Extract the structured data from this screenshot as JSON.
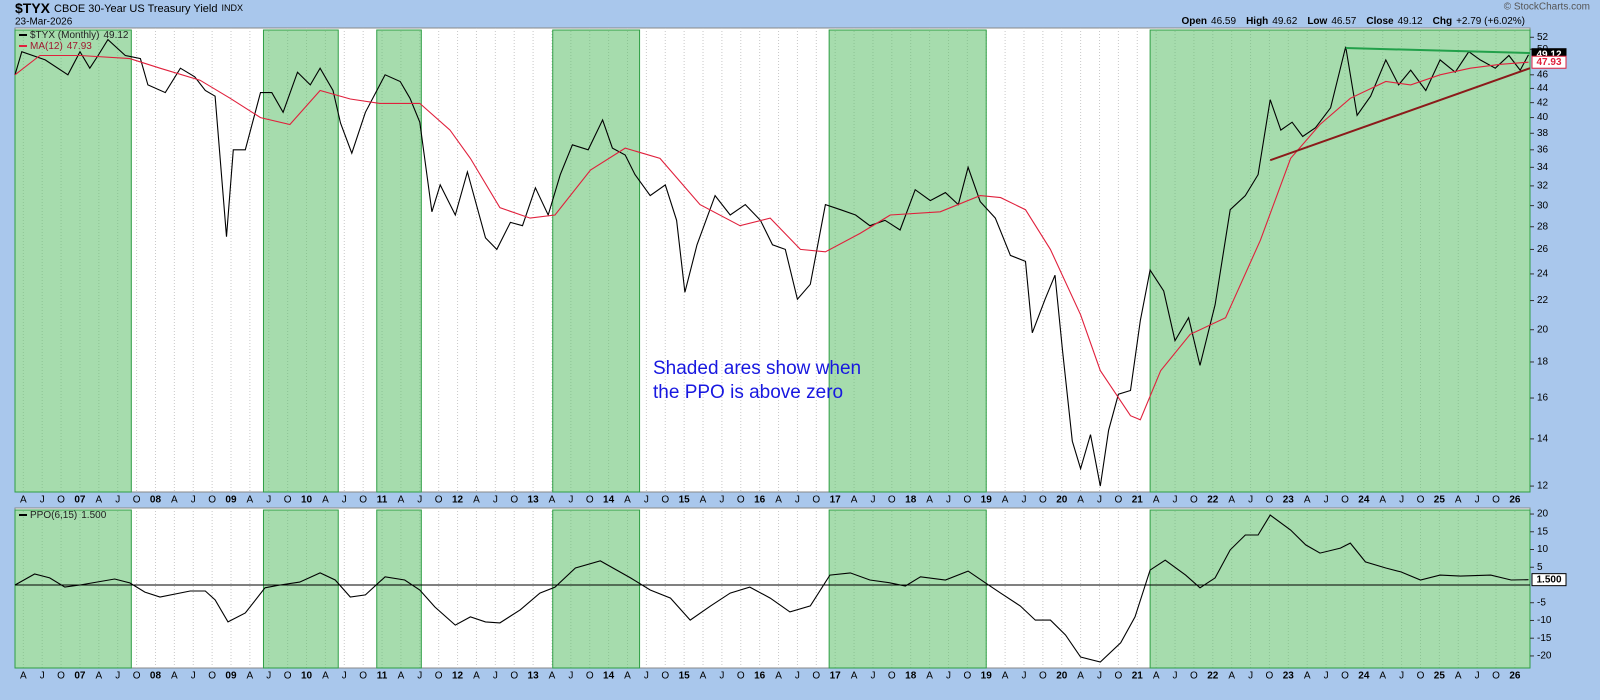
{
  "chart_data": [
    {
      "type": "line",
      "title": "$TYX",
      "subtitle": "CBOE 30-Year US Treasury Yield",
      "exchange": "INDX",
      "date": "23-Mar-2026",
      "quote": [
        {
          "label": "Open",
          "value": 46.59
        },
        {
          "label": "High",
          "value": 49.62
        },
        {
          "label": "Low",
          "value": 46.57
        },
        {
          "label": "Close",
          "value": 49.12
        },
        {
          "label": "Chg",
          "value": "+2.79 (+6.02%)"
        }
      ],
      "credit": "© StockCharts.com",
      "annotation": "Shaded ares show when the PPO is above zero",
      "log_scale": true,
      "grid": "x",
      "xlim": [
        2006.14,
        2026.2
      ],
      "xticks": [
        {
          "value": 2006.25,
          "label": "A"
        },
        {
          "value": 2006.5,
          "label": "J"
        },
        {
          "value": 2006.75,
          "label": "O"
        },
        {
          "value": 2007,
          "label": "07"
        },
        {
          "value": 2007.25,
          "label": "A"
        },
        {
          "value": 2007.5,
          "label": "J"
        },
        {
          "value": 2007.75,
          "label": "O"
        },
        {
          "value": 2008,
          "label": "08"
        },
        {
          "value": 2008.25,
          "label": "A"
        },
        {
          "value": 2008.5,
          "label": "J"
        },
        {
          "value": 2008.75,
          "label": "O"
        },
        {
          "value": 2009,
          "label": "09"
        },
        {
          "value": 2009.25,
          "label": "A"
        },
        {
          "value": 2009.5,
          "label": "J"
        },
        {
          "value": 2009.75,
          "label": "O"
        },
        {
          "value": 2010,
          "label": "10"
        },
        {
          "value": 2010.25,
          "label": "A"
        },
        {
          "value": 2010.5,
          "label": "J"
        },
        {
          "value": 2010.75,
          "label": "O"
        },
        {
          "value": 2011,
          "label": "11"
        },
        {
          "value": 2011.25,
          "label": "A"
        },
        {
          "value": 2011.5,
          "label": "J"
        },
        {
          "value": 2011.75,
          "label": "O"
        },
        {
          "value": 2012,
          "label": "12"
        },
        {
          "value": 2012.25,
          "label": "A"
        },
        {
          "value": 2012.5,
          "label": "J"
        },
        {
          "value": 2012.75,
          "label": "O"
        },
        {
          "value": 2013,
          "label": "13"
        },
        {
          "value": 2013.25,
          "label": "A"
        },
        {
          "value": 2013.5,
          "label": "J"
        },
        {
          "value": 2013.75,
          "label": "O"
        },
        {
          "value": 2014,
          "label": "14"
        },
        {
          "value": 2014.25,
          "label": "A"
        },
        {
          "value": 2014.5,
          "label": "J"
        },
        {
          "value": 2014.75,
          "label": "O"
        },
        {
          "value": 2015,
          "label": "15"
        },
        {
          "value": 2015.25,
          "label": "A"
        },
        {
          "value": 2015.5,
          "label": "J"
        },
        {
          "value": 2015.75,
          "label": "O"
        },
        {
          "value": 2016,
          "label": "16"
        },
        {
          "value": 2016.25,
          "label": "A"
        },
        {
          "value": 2016.5,
          "label": "J"
        },
        {
          "value": 2016.75,
          "label": "O"
        },
        {
          "value": 2017,
          "label": "17"
        },
        {
          "value": 2017.25,
          "label": "A"
        },
        {
          "value": 2017.5,
          "label": "J"
        },
        {
          "value": 2017.75,
          "label": "O"
        },
        {
          "value": 2018,
          "label": "18"
        },
        {
          "value": 2018.25,
          "label": "A"
        },
        {
          "value": 2018.5,
          "label": "J"
        },
        {
          "value": 2018.75,
          "label": "O"
        },
        {
          "value": 2019,
          "label": "19"
        },
        {
          "value": 2019.25,
          "label": "A"
        },
        {
          "value": 2019.5,
          "label": "J"
        },
        {
          "value": 2019.75,
          "label": "O"
        },
        {
          "value": 2020,
          "label": "20"
        },
        {
          "value": 2020.25,
          "label": "A"
        },
        {
          "value": 2020.5,
          "label": "J"
        },
        {
          "value": 2020.75,
          "label": "O"
        },
        {
          "value": 2021,
          "label": "21"
        },
        {
          "value": 2021.25,
          "label": "A"
        },
        {
          "value": 2021.5,
          "label": "J"
        },
        {
          "value": 2021.75,
          "label": "O"
        },
        {
          "value": 2022,
          "label": "22"
        },
        {
          "value": 2022.25,
          "label": "A"
        },
        {
          "value": 2022.5,
          "label": "J"
        },
        {
          "value": 2022.75,
          "label": "O"
        },
        {
          "value": 2023,
          "label": "23"
        },
        {
          "value": 2023.25,
          "label": "A"
        },
        {
          "value": 2023.5,
          "label": "J"
        },
        {
          "value": 2023.75,
          "label": "O"
        },
        {
          "value": 2024,
          "label": "24"
        },
        {
          "value": 2024.25,
          "label": "A"
        },
        {
          "value": 2024.5,
          "label": "J"
        },
        {
          "value": 2024.75,
          "label": "O"
        },
        {
          "value": 2025,
          "label": "25"
        },
        {
          "value": 2025.25,
          "label": "A"
        },
        {
          "value": 2025.5,
          "label": "J"
        },
        {
          "value": 2025.75,
          "label": "O"
        },
        {
          "value": 2026,
          "label": "26"
        }
      ],
      "ylim": [
        11.77,
        53.6
      ],
      "yticks": [
        12,
        14,
        16,
        18,
        20,
        22,
        24,
        26,
        28,
        30,
        32,
        34,
        36,
        38,
        40,
        42,
        44,
        46,
        50,
        52
      ],
      "shade_color": "#5cbf6a",
      "shaded": [
        [
          2006.14,
          2007.68
        ],
        [
          2009.43,
          2010.42
        ],
        [
          2010.93,
          2011.52
        ],
        [
          2013.26,
          2014.41
        ],
        [
          2016.92,
          2019.0
        ],
        [
          2021.17,
          2026.2
        ]
      ],
      "series": [
        {
          "name": "$TYX (Monthly)",
          "color": "#000000",
          "last": 49.12,
          "x": [
            2006.14,
            2006.23,
            2006.54,
            2006.84,
            2007.0,
            2007.13,
            2007.24,
            2007.37,
            2007.6,
            2007.8,
            2007.9,
            2008.13,
            2008.33,
            2008.52,
            2008.66,
            2008.79,
            2008.94,
            2009.03,
            2009.19,
            2009.39,
            2009.54,
            2009.69,
            2009.88,
            2010.05,
            2010.18,
            2010.35,
            2010.45,
            2010.6,
            2010.78,
            2011.04,
            2011.24,
            2011.37,
            2011.5,
            2011.66,
            2011.77,
            2011.97,
            2012.13,
            2012.37,
            2012.52,
            2012.7,
            2012.86,
            2013.03,
            2013.2,
            2013.36,
            2013.52,
            2013.73,
            2013.92,
            2014.05,
            2014.22,
            2014.35,
            2014.55,
            2014.75,
            2014.9,
            2015.01,
            2015.17,
            2015.41,
            2015.61,
            2015.81,
            2016.01,
            2016.17,
            2016.34,
            2016.5,
            2016.67,
            2016.87,
            2017.07,
            2017.27,
            2017.46,
            2017.66,
            2017.86,
            2018.06,
            2018.26,
            2018.46,
            2018.63,
            2018.76,
            2018.92,
            2019.12,
            2019.32,
            2019.52,
            2019.61,
            2019.78,
            2019.91,
            2020.01,
            2020.14,
            2020.25,
            2020.38,
            2020.51,
            2020.62,
            2020.75,
            2020.91,
            2021.04,
            2021.17,
            2021.35,
            2021.5,
            2021.68,
            2021.83,
            2022.03,
            2022.23,
            2022.43,
            2022.6,
            2022.76,
            2022.9,
            2023.05,
            2023.19,
            2023.36,
            2023.56,
            2023.76,
            2023.91,
            2024.09,
            2024.29,
            2024.46,
            2024.62,
            2024.82,
            2025.01,
            2025.21,
            2025.39,
            2025.54,
            2025.74,
            2025.92,
            2026.07,
            2026.18
          ],
          "values": [
            46,
            49.6,
            48.3,
            46,
            49.6,
            47,
            49,
            51.6,
            49,
            48.5,
            44.5,
            43.4,
            47,
            45.7,
            43.7,
            42.9,
            27.1,
            36,
            36,
            43.4,
            43.4,
            40.7,
            46.4,
            44.5,
            47,
            43.7,
            39.3,
            35.6,
            40.7,
            46,
            45,
            42.6,
            39.4,
            29.4,
            32.1,
            29.1,
            33.5,
            27,
            26,
            28.4,
            28.1,
            31.8,
            29.1,
            33.2,
            36.6,
            36,
            39.7,
            36.2,
            35.4,
            33.2,
            31,
            32.1,
            28.6,
            22.6,
            26.4,
            31,
            29.1,
            30.1,
            28.6,
            26.4,
            26,
            22.1,
            23.2,
            30.1,
            29.6,
            29.1,
            28.1,
            28.6,
            27.7,
            31.6,
            30.5,
            31.3,
            30.1,
            34,
            30.4,
            28.8,
            25.5,
            25,
            19.8,
            22.1,
            23.9,
            18.7,
            13.9,
            12.7,
            14.2,
            12,
            14.4,
            16.2,
            16.4,
            20.6,
            24.3,
            22.7,
            19.3,
            20.8,
            17.8,
            21.7,
            29.6,
            31,
            33.2,
            42.4,
            38.4,
            39.4,
            37.6,
            38.7,
            41.3,
            50.4,
            40.3,
            42.9,
            48.3,
            44.5,
            46.7,
            43.7,
            48.3,
            46.4,
            49.6,
            48.3,
            47,
            49,
            46.7,
            49.12
          ]
        },
        {
          "name": "MA(12)",
          "color": "#e0203c",
          "last": 47.93,
          "x": [
            2006.14,
            2006.47,
            2007.0,
            2007.66,
            2008.06,
            2008.59,
            2008.99,
            2009.39,
            2009.78,
            2010.18,
            2010.58,
            2010.97,
            2011.5,
            2011.9,
            2012.17,
            2012.56,
            2012.96,
            2013.29,
            2013.76,
            2014.22,
            2014.68,
            2015.21,
            2015.74,
            2016.14,
            2016.54,
            2016.87,
            2017.33,
            2017.73,
            2018.39,
            2018.92,
            2019.19,
            2019.52,
            2019.85,
            2020.25,
            2020.51,
            2020.91,
            2021.04,
            2021.31,
            2021.7,
            2022.17,
            2022.63,
            2023.03,
            2023.42,
            2023.82,
            2024.29,
            2024.62,
            2025.01,
            2025.41,
            2025.81,
            2026.18
          ],
          "values": [
            46,
            49,
            49,
            48.5,
            47,
            45.2,
            42.6,
            40,
            39.1,
            43.7,
            42.5,
            41.9,
            41.9,
            38.4,
            35,
            29.8,
            28.8,
            29.1,
            33.7,
            36.2,
            35,
            30.1,
            28.1,
            28.8,
            26,
            25.8,
            27.4,
            29.1,
            29.4,
            31,
            30.8,
            29.6,
            26,
            21,
            17.5,
            15.1,
            14.9,
            17.5,
            19.7,
            20.8,
            26.8,
            35,
            39.1,
            42.6,
            45,
            44.5,
            46,
            47,
            47.6,
            47.93
          ]
        }
      ],
      "trendlines": [
        {
          "color": "#22a04a",
          "x": [
            2023.76,
            2026.2
          ],
          "y": [
            50.2,
            49.4
          ]
        },
        {
          "color": "#8b1a1a",
          "x": [
            2022.76,
            2026.2
          ],
          "y": [
            34.8,
            47
          ]
        }
      ]
    },
    {
      "type": "line",
      "xlim": [
        2006.14,
        2026.2
      ],
      "ylim": [
        -23.4,
        21.7
      ],
      "yticks": [
        -20,
        -15,
        -10,
        -5,
        5,
        10,
        15,
        20
      ],
      "series": [
        {
          "name": "PPO(6,15)",
          "color": "#000000",
          "last": {
            "value": 1.5,
            "label": "1.500"
          },
          "x": [
            2006.14,
            2006.4,
            2006.6,
            2006.8,
            2007.0,
            2007.46,
            2007.66,
            2007.86,
            2008.06,
            2008.46,
            2008.66,
            2008.79,
            2008.96,
            2009.19,
            2009.45,
            2009.65,
            2009.91,
            2010.18,
            2010.38,
            2010.58,
            2010.78,
            2011.04,
            2011.3,
            2011.5,
            2011.7,
            2011.97,
            2012.17,
            2012.37,
            2012.56,
            2012.83,
            2013.09,
            2013.29,
            2013.56,
            2013.89,
            2014.29,
            2014.55,
            2014.82,
            2015.08,
            2015.35,
            2015.61,
            2015.87,
            2016.14,
            2016.4,
            2016.67,
            2016.93,
            2017.2,
            2017.46,
            2017.73,
            2017.93,
            2018.13,
            2018.46,
            2018.76,
            2018.99,
            2019.19,
            2019.45,
            2019.65,
            2019.85,
            2020.05,
            2020.25,
            2020.51,
            2020.78,
            2020.97,
            2021.17,
            2021.37,
            2021.64,
            2021.83,
            2022.03,
            2022.23,
            2022.43,
            2022.6,
            2022.76,
            2023.03,
            2023.23,
            2023.42,
            2023.69,
            2023.82,
            2024.02,
            2024.29,
            2024.49,
            2024.75,
            2025.01,
            2025.28,
            2025.68,
            2025.95,
            2026.18
          ],
          "values": [
            0,
            3.1,
            2,
            -0.6,
            0,
            1.7,
            0.6,
            -2,
            -3.4,
            -1.7,
            -1.7,
            -4.2,
            -10.4,
            -7.9,
            -0.8,
            0,
            0.8,
            3.4,
            1.4,
            -3.4,
            -2.8,
            2.3,
            1.4,
            -1.4,
            -6.2,
            -11.3,
            -9,
            -10.4,
            -10.7,
            -7,
            -2.3,
            -0.6,
            4.8,
            6.8,
            2,
            -1.4,
            -3.7,
            -9.9,
            -5.9,
            -2.3,
            -0.6,
            -3.7,
            -7.6,
            -5.9,
            2.8,
            3.4,
            1.4,
            0.6,
            -0.3,
            2.3,
            1.4,
            3.9,
            0.6,
            -2.3,
            -5.9,
            -9.9,
            -9.9,
            -14.1,
            -20.3,
            -21.7,
            -16.3,
            -9,
            4.2,
            7,
            2.8,
            -0.8,
            2,
            9.9,
            14.1,
            14.1,
            19.7,
            15.5,
            11.3,
            9,
            10.4,
            11.8,
            6.5,
            4.8,
            3.7,
            1.4,
            2.8,
            2.5,
            2.8,
            1.4,
            1.5
          ]
        }
      ]
    }
  ]
}
